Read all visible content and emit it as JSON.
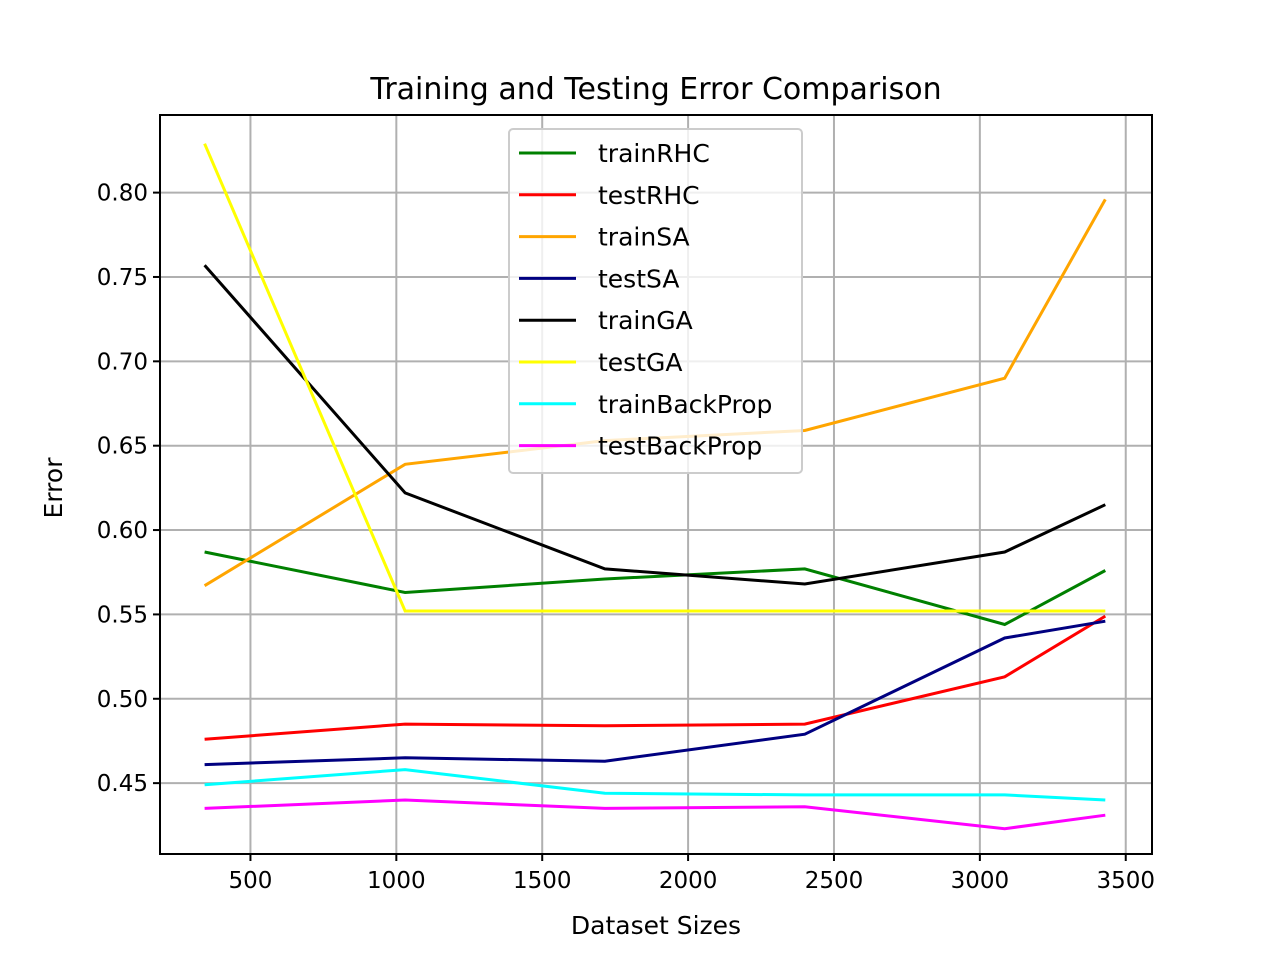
{
  "chart_data": {
    "type": "line",
    "title": "Training and Testing Error Comparison",
    "xlabel": "Dataset Sizes",
    "ylabel": "Error",
    "x": [
      343,
      1030,
      1715,
      2400,
      3085,
      3430
    ],
    "xlim": [
      190,
      3590
    ],
    "ylim": [
      0.408,
      0.846
    ],
    "xticks": [
      500,
      1000,
      1500,
      2000,
      2500,
      3000,
      3500
    ],
    "xtick_labels": [
      "500",
      "1000",
      "1500",
      "2000",
      "2500",
      "3000",
      "3500"
    ],
    "yticks": [
      0.45,
      0.5,
      0.55,
      0.6,
      0.65,
      0.7,
      0.75,
      0.8
    ],
    "ytick_labels": [
      "0.45",
      "0.50",
      "0.55",
      "0.60",
      "0.65",
      "0.70",
      "0.75",
      "0.80"
    ],
    "grid": true,
    "legend_position": "upper-center",
    "series": [
      {
        "name": "trainRHC",
        "color": "#008000",
        "values": [
          0.587,
          0.563,
          0.571,
          0.577,
          0.544,
          0.576
        ]
      },
      {
        "name": "testRHC",
        "color": "#ff0000",
        "values": [
          0.476,
          0.485,
          0.484,
          0.485,
          0.513,
          0.549
        ]
      },
      {
        "name": "trainSA",
        "color": "#ffa500",
        "values": [
          0.567,
          0.639,
          0.653,
          0.659,
          0.69,
          0.796
        ]
      },
      {
        "name": "testSA",
        "color": "#000080",
        "values": [
          0.461,
          0.465,
          0.463,
          0.479,
          0.536,
          0.546
        ]
      },
      {
        "name": "trainGA",
        "color": "#000000",
        "values": [
          0.757,
          0.622,
          0.577,
          0.568,
          0.587,
          0.615
        ]
      },
      {
        "name": "testGA",
        "color": "#ffff00",
        "values": [
          0.829,
          0.552,
          0.552,
          0.552,
          0.552,
          0.552
        ]
      },
      {
        "name": "trainBackProp",
        "color": "#00ffff",
        "values": [
          0.449,
          0.458,
          0.444,
          0.443,
          0.443,
          0.44
        ]
      },
      {
        "name": "testBackProp",
        "color": "#ff00ff",
        "values": [
          0.435,
          0.44,
          0.435,
          0.436,
          0.423,
          0.431
        ]
      }
    ]
  }
}
